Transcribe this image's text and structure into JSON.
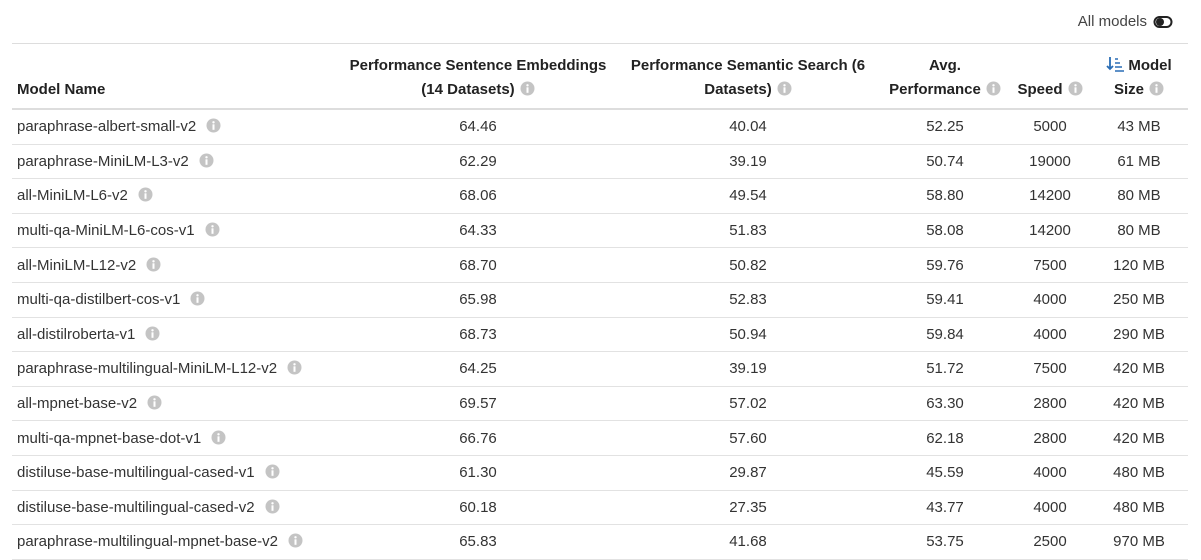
{
  "toolbar": {
    "toggle_label": "All models"
  },
  "table": {
    "headers": [
      "Model Name",
      "Performance Sentence Embeddings (14 Datasets)",
      "Performance Semantic Search (6 Datasets)",
      "Avg. Performance",
      "Speed",
      "Model Size"
    ],
    "rows": [
      [
        "paraphrase-albert-small-v2",
        "64.46",
        "40.04",
        "52.25",
        "5000",
        "43 MB"
      ],
      [
        "paraphrase-MiniLM-L3-v2",
        "62.29",
        "39.19",
        "50.74",
        "19000",
        "61 MB"
      ],
      [
        "all-MiniLM-L6-v2",
        "68.06",
        "49.54",
        "58.80",
        "14200",
        "80 MB"
      ],
      [
        "multi-qa-MiniLM-L6-cos-v1",
        "64.33",
        "51.83",
        "58.08",
        "14200",
        "80 MB"
      ],
      [
        "all-MiniLM-L12-v2",
        "68.70",
        "50.82",
        "59.76",
        "7500",
        "120 MB"
      ],
      [
        "multi-qa-distilbert-cos-v1",
        "65.98",
        "52.83",
        "59.41",
        "4000",
        "250 MB"
      ],
      [
        "all-distilroberta-v1",
        "68.73",
        "50.94",
        "59.84",
        "4000",
        "290 MB"
      ],
      [
        "paraphrase-multilingual-MiniLM-L12-v2",
        "64.25",
        "39.19",
        "51.72",
        "7500",
        "420 MB"
      ],
      [
        "all-mpnet-base-v2",
        "69.57",
        "57.02",
        "63.30",
        "2800",
        "420 MB"
      ],
      [
        "multi-qa-mpnet-base-dot-v1",
        "66.76",
        "57.60",
        "62.18",
        "2800",
        "420 MB"
      ],
      [
        "distiluse-base-multilingual-cased-v1",
        "61.30",
        "29.87",
        "45.59",
        "4000",
        "480 MB"
      ],
      [
        "distiluse-base-multilingual-cased-v2",
        "60.18",
        "27.35",
        "43.77",
        "4000",
        "480 MB"
      ],
      [
        "paraphrase-multilingual-mpnet-base-v2",
        "65.83",
        "41.68",
        "53.75",
        "2500",
        "970 MB"
      ]
    ]
  }
}
